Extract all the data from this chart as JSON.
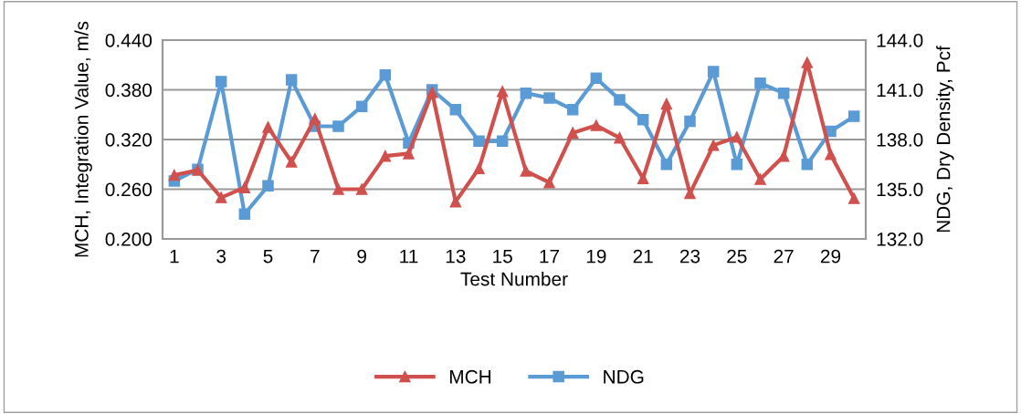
{
  "chart_data": {
    "type": "line",
    "xlabel": "Test Number",
    "ylabel": "MCH, Integration Value, m/s",
    "y2label": "NDG, Dry Density, Pcf",
    "categories": [
      "1",
      null,
      "3",
      null,
      "5",
      null,
      "7",
      null,
      "9",
      null,
      "11",
      null,
      "13",
      null,
      "15",
      null,
      "17",
      null,
      "19",
      null,
      "21",
      null,
      "23",
      null,
      "25",
      null,
      "27",
      null,
      "29",
      null
    ],
    "series": [
      {
        "name": "MCH",
        "color": "#d0504d",
        "marker": "triangle",
        "values": [
          0.277,
          0.283,
          0.25,
          0.262,
          0.335,
          0.293,
          0.345,
          0.26,
          0.26,
          0.3,
          0.303,
          0.377,
          0.245,
          0.285,
          0.378,
          0.282,
          0.268,
          0.328,
          0.337,
          0.322,
          0.273,
          0.363,
          0.255,
          0.313,
          0.323,
          0.272,
          0.3,
          0.413,
          0.302,
          0.249
        ]
      },
      {
        "name": "NDG",
        "color": "#5b9bd5",
        "marker": "square",
        "axis": "y2",
        "values": [
          135.5,
          136.2,
          141.5,
          133.5,
          135.2,
          141.6,
          138.8,
          138.8,
          140.0,
          141.9,
          137.8,
          141.0,
          139.8,
          137.9,
          137.9,
          140.8,
          140.5,
          139.8,
          141.7,
          140.4,
          139.2,
          136.5,
          139.1,
          142.1,
          136.5,
          141.4,
          140.8,
          136.5,
          138.5,
          139.4
        ]
      }
    ],
    "ylim": [
      0.2,
      0.44
    ],
    "yticks": [
      {
        "value": 0.2,
        "label": "0.200"
      },
      {
        "value": 0.26,
        "label": "0.260"
      },
      {
        "value": 0.32,
        "label": "0.320"
      },
      {
        "value": 0.38,
        "label": "0.380"
      },
      {
        "value": 0.44,
        "label": "0.440"
      }
    ],
    "y2lim": [
      132,
      144
    ],
    "y2ticks": [
      {
        "value": 132,
        "label": "132.0"
      },
      {
        "value": 135,
        "label": "135.0"
      },
      {
        "value": 138,
        "label": "138.0"
      },
      {
        "value": 141,
        "label": "141.0"
      },
      {
        "value": 144,
        "label": "144.0"
      }
    ],
    "grid": "y",
    "legend": "bottom",
    "line_style": "solid"
  }
}
